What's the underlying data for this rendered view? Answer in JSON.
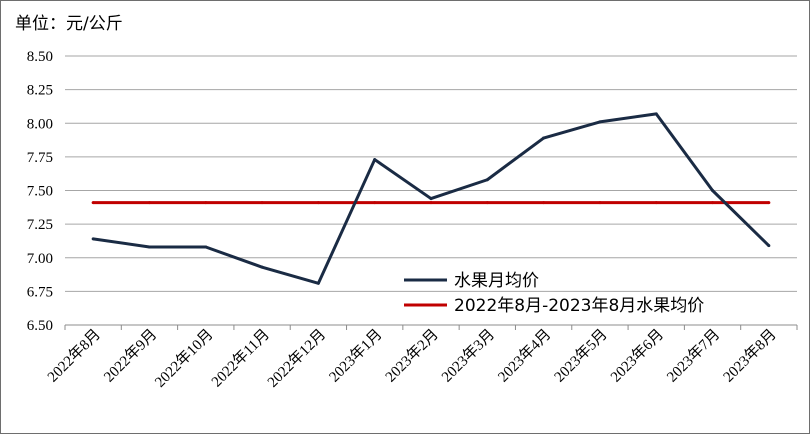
{
  "unit_label": "单位：元/公斤",
  "chart_data": {
    "type": "line",
    "categories": [
      "2022年8月",
      "2022年9月",
      "2022年10月",
      "2022年11月",
      "2022年12月",
      "2023年1月",
      "2023年2月",
      "2023年3月",
      "2023年4月",
      "2023年5月",
      "2023年6月",
      "2023年7月",
      "2023年8月"
    ],
    "series": [
      {
        "name": "水果月均价",
        "color": "#1a2b44",
        "values": [
          7.14,
          7.08,
          7.08,
          6.93,
          6.81,
          7.73,
          7.44,
          7.58,
          7.89,
          8.01,
          8.07,
          7.5,
          7.09
        ]
      },
      {
        "name": "2022年8月-2023年8月水果均价",
        "color": "#c00000",
        "values": [
          7.41,
          7.41,
          7.41,
          7.41,
          7.41,
          7.41,
          7.41,
          7.41,
          7.41,
          7.41,
          7.41,
          7.41,
          7.41
        ]
      }
    ],
    "ylim": [
      6.5,
      8.5
    ],
    "yticks": [
      "6.50",
      "6.75",
      "7.00",
      "7.25",
      "7.50",
      "7.75",
      "8.00",
      "8.25",
      "8.50"
    ],
    "grid": true,
    "legend_position": "bottom-right"
  }
}
